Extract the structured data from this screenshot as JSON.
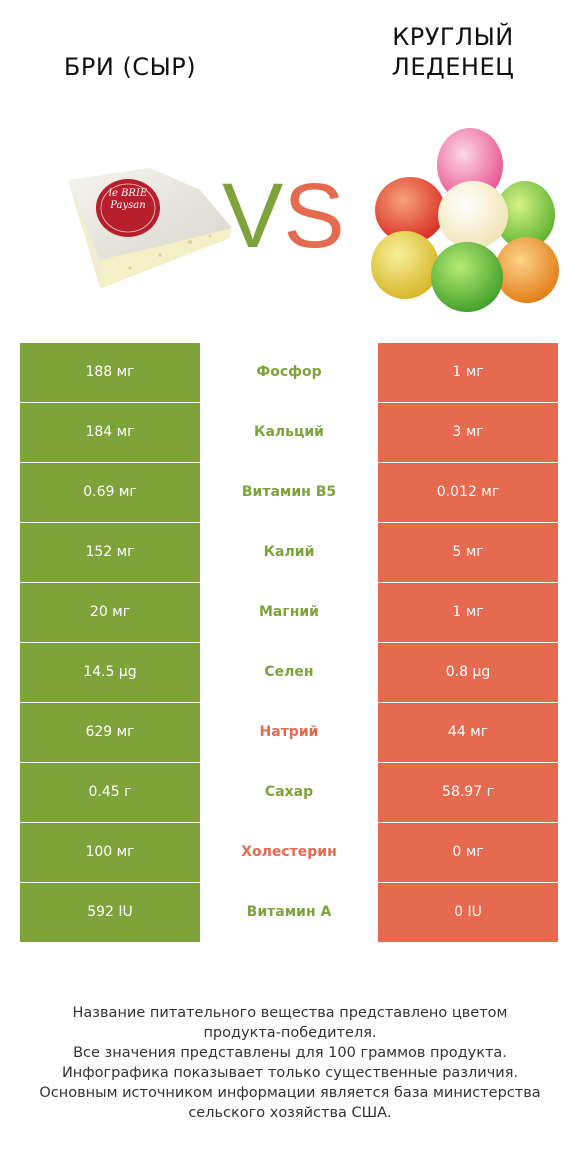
{
  "left": {
    "title": "БРИ (СЫР)",
    "brand": "le BRIE\nPaysan"
  },
  "right": {
    "title": "КРУГЛЫЙ\nЛЕДЕНЕЦ"
  },
  "vs": {
    "v": "V",
    "s": "S"
  },
  "colors": {
    "left": "#7ea33b",
    "right": "#e56a4f"
  },
  "rows": [
    {
      "left": "188 мг",
      "name": "Фосфор",
      "right": "1 мг",
      "winner": "left"
    },
    {
      "left": "184 мг",
      "name": "Кальций",
      "right": "3 мг",
      "winner": "left"
    },
    {
      "left": "0.69 мг",
      "name": "Витамин B5",
      "right": "0.012 мг",
      "winner": "left"
    },
    {
      "left": "152 мг",
      "name": "Калий",
      "right": "5 мг",
      "winner": "left"
    },
    {
      "left": "20 мг",
      "name": "Магний",
      "right": "1 мг",
      "winner": "left"
    },
    {
      "left": "14.5 µg",
      "name": "Селен",
      "right": "0.8 µg",
      "winner": "left"
    },
    {
      "left": "629 мг",
      "name": "Натрий",
      "right": "44 мг",
      "winner": "right"
    },
    {
      "left": "0.45 г",
      "name": "Сахар",
      "right": "58.97 г",
      "winner": "left"
    },
    {
      "left": "100 мг",
      "name": "Холестерин",
      "right": "0 мг",
      "winner": "right"
    },
    {
      "left": "592 IU",
      "name": "Витамин A",
      "right": "0 IU",
      "winner": "left"
    }
  ],
  "footer": [
    "Название питательного вещества представлено цветом",
    "продукта-победителя.",
    "Все значения представлены для 100 граммов продукта.",
    "Инфографика показывает только существенные различия.",
    "Основным источником информации является база министерства",
    "сельского хозяйства США."
  ]
}
